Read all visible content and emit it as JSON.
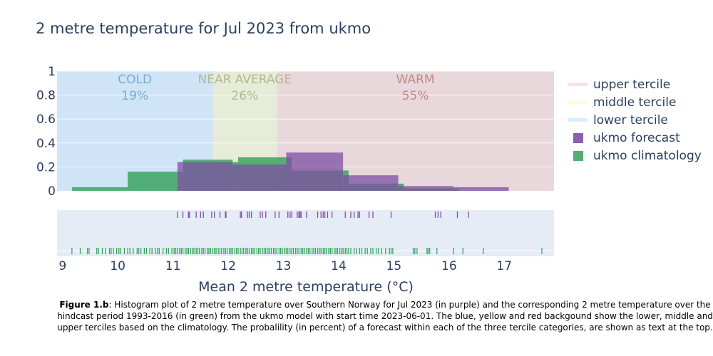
{
  "chart_data": {
    "type": "bar",
    "title": "2 metre temperature for Jul 2023 from ukmo",
    "xlabel": "Mean 2 metre temperature (°C)",
    "ylabel": "",
    "xlim": [
      8.9,
      17.9
    ],
    "ylim": [
      0,
      1
    ],
    "x_ticks": [
      "9",
      "10",
      "11",
      "12",
      "13",
      "14",
      "15",
      "16",
      "17"
    ],
    "x_tick_values": [
      9,
      10,
      11,
      12,
      13,
      14,
      15,
      16,
      17
    ],
    "y_ticks": [
      "0",
      "0.2",
      "0.4",
      "0.6",
      "0.8",
      "1"
    ],
    "y_tick_values": [
      0,
      0.2,
      0.4,
      0.6,
      0.8,
      1
    ],
    "grid": true,
    "legend_position": "right",
    "terciles": [
      {
        "label": "COLD",
        "percent": "19%",
        "x0": 8.9,
        "x1": 11.72,
        "color": "#cfe4f7",
        "text_color": "#7aaccc"
      },
      {
        "label": "NEAR AVERAGE",
        "percent": "26%",
        "x0": 11.72,
        "x1": 12.88,
        "color": "#e6ecd8",
        "text_color": "#b3b98a"
      },
      {
        "label": "WARM",
        "percent": "55%",
        "x0": 12.88,
        "x1": 17.9,
        "color": "#e8d8dc",
        "text_color": "#c28a86"
      }
    ],
    "series": [
      {
        "name": "ukmo climatology",
        "color": "#3aa45f",
        "bins": [
          {
            "x0": 9.17,
            "x1": 10.18,
            "y": 0.03
          },
          {
            "x0": 10.18,
            "x1": 11.08,
            "y": 0.16
          },
          {
            "x0": 11.08,
            "x1": 11.18,
            "y": 0.16
          },
          {
            "x0": 11.18,
            "x1": 11.8,
            "y": 0.26
          },
          {
            "x0": 11.8,
            "x1": 12.08,
            "y": 0.26
          },
          {
            "x0": 12.08,
            "x1": 12.18,
            "y": 0.24
          },
          {
            "x0": 12.18,
            "x1": 13.15,
            "y": 0.28
          },
          {
            "x0": 13.15,
            "x1": 14.08,
            "y": 0.17
          },
          {
            "x0": 14.08,
            "x1": 14.18,
            "y": 0.17
          },
          {
            "x0": 14.18,
            "x1": 15.18,
            "y": 0.06
          },
          {
            "x0": 15.18,
            "x1": 16.18,
            "y": 0.02
          }
        ]
      },
      {
        "name": "ukmo forecast",
        "color": "#7e4fa4",
        "bins": [
          {
            "x0": 11.08,
            "x1": 12.08,
            "y": 0.24
          },
          {
            "x0": 12.08,
            "x1": 13.05,
            "y": 0.22
          },
          {
            "x0": 13.05,
            "x1": 14.08,
            "y": 0.32
          },
          {
            "x0": 14.08,
            "x1": 15.08,
            "y": 0.13
          },
          {
            "x0": 15.08,
            "x1": 16.08,
            "y": 0.04
          },
          {
            "x0": 16.08,
            "x1": 17.08,
            "y": 0.03
          }
        ]
      }
    ],
    "rug": {
      "forecast": [
        11.08,
        11.18,
        11.28,
        11.3,
        11.42,
        11.5,
        11.55,
        11.7,
        11.75,
        11.85,
        11.95,
        11.96,
        12.22,
        12.24,
        12.35,
        12.38,
        12.42,
        12.58,
        12.62,
        12.68,
        12.85,
        12.92,
        13.08,
        13.12,
        13.15,
        13.25,
        13.28,
        13.3,
        13.32,
        13.42,
        13.62,
        13.68,
        13.72,
        13.75,
        13.8,
        13.88,
        14.12,
        14.22,
        14.28,
        14.35,
        14.38,
        14.55,
        14.62,
        14.95,
        15.75,
        15.8,
        15.85,
        16.15,
        16.35
      ],
      "climatology": [
        9.17,
        9.32,
        9.45,
        9.48,
        9.62,
        9.65,
        9.72,
        9.78,
        9.85,
        9.88,
        9.92,
        9.98,
        10.02,
        10.05,
        10.12,
        10.18,
        10.22,
        10.28,
        10.35,
        10.38,
        10.42,
        10.48,
        10.52,
        10.58,
        10.62,
        10.68,
        10.72,
        10.75,
        10.82,
        10.88,
        10.92,
        10.98,
        11.02,
        11.05,
        11.08,
        11.12,
        11.15,
        11.18,
        11.22,
        11.25,
        11.28,
        11.32,
        11.35,
        11.38,
        11.42,
        11.45,
        11.48,
        11.52,
        11.55,
        11.58,
        11.62,
        11.65,
        11.68,
        11.72,
        11.75,
        11.78,
        11.82,
        11.85,
        11.88,
        11.92,
        11.95,
        11.98,
        12.02,
        12.05,
        12.08,
        12.12,
        12.15,
        12.18,
        12.22,
        12.25,
        12.28,
        12.32,
        12.35,
        12.38,
        12.42,
        12.45,
        12.48,
        12.52,
        12.55,
        12.58,
        12.62,
        12.65,
        12.68,
        12.72,
        12.75,
        12.78,
        12.82,
        12.85,
        12.88,
        12.92,
        12.95,
        12.98,
        13.02,
        13.05,
        13.08,
        13.12,
        13.15,
        13.18,
        13.22,
        13.25,
        13.28,
        13.32,
        13.35,
        13.38,
        13.42,
        13.45,
        13.48,
        13.52,
        13.55,
        13.58,
        13.62,
        13.65,
        13.68,
        13.72,
        13.75,
        13.78,
        13.82,
        13.85,
        13.88,
        13.92,
        13.95,
        13.98,
        14.02,
        14.05,
        14.08,
        14.12,
        14.15,
        14.18,
        14.22,
        14.28,
        14.32,
        14.38,
        14.42,
        14.48,
        14.52,
        14.58,
        14.62,
        14.68,
        14.72,
        14.78,
        14.85,
        14.92,
        14.95,
        14.98,
        15.35,
        15.38,
        15.42,
        15.6,
        15.62,
        15.65,
        15.78,
        16.08,
        16.25,
        16.62,
        17.68
      ]
    }
  },
  "legend": {
    "items": [
      {
        "label": "upper tercile",
        "kind": "line",
        "color": "#fde0dc"
      },
      {
        "label": "middle tercile",
        "kind": "line",
        "color": "#fdfbdc"
      },
      {
        "label": "lower tercile",
        "kind": "line",
        "color": "#dcedfb"
      },
      {
        "label": "ukmo forecast",
        "kind": "box",
        "color": "#8d5fb0"
      },
      {
        "label": "ukmo climatology",
        "kind": "box",
        "color": "#55ad73"
      }
    ]
  },
  "caption": {
    "bold": "Figure 1.b",
    "lines": [
      ": Histogram plot of 2 metre temperature over Southern Norway for Jul 2023 (in purple) and the corresponding 2 metre temperature over the",
      "hindcast period 1993-2016 (in green) from the ukmo model with start time 2023-06-01. The blue, yellow and red backgound show the lower, middle and",
      "upper terciles based on the climatology. The probalility (in percent) of a forecast within each of the three tercile categories, are shown as text at the top."
    ]
  }
}
